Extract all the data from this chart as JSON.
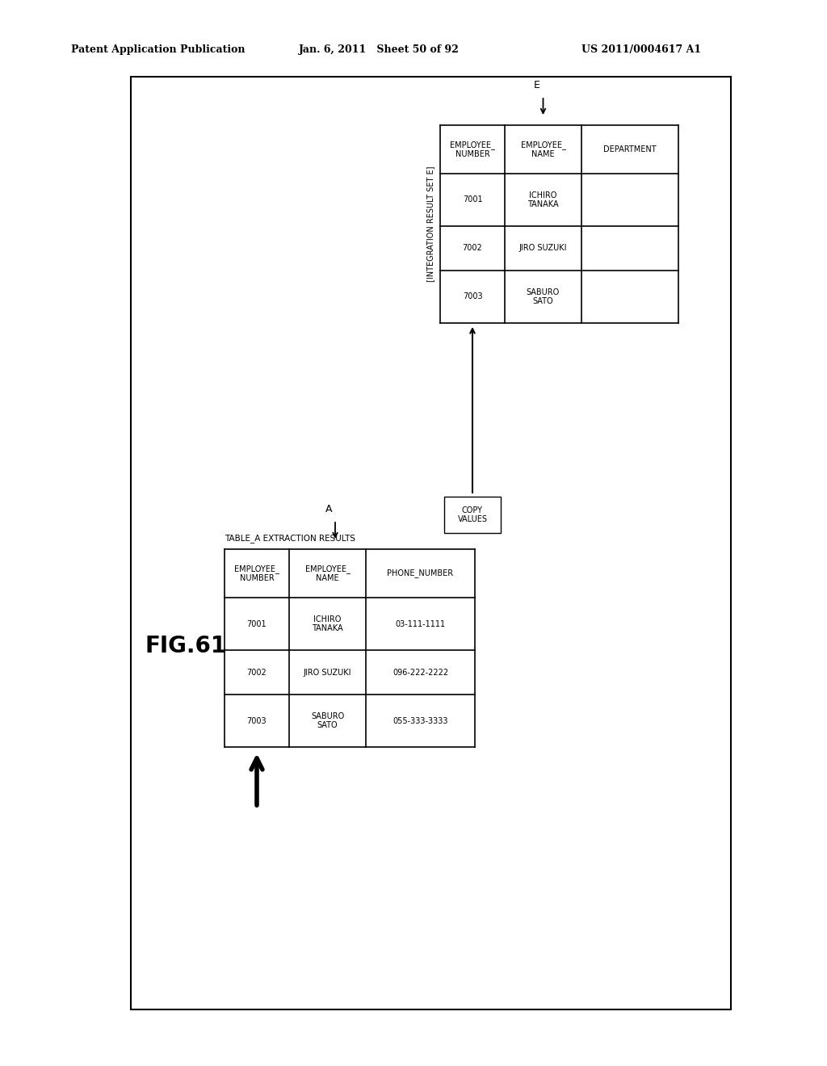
{
  "bg_color": "#ffffff",
  "header_left": "Patent Application Publication",
  "header_mid": "Jan. 6, 2011   Sheet 50 of 92",
  "header_right": "US 2011/0004617 A1",
  "fig_label": "FIG.61",
  "table_a_label": "TABLE_A EXTRACTION RESULTS",
  "table_a_cols": [
    "EMPLOYEE_\nNUMBER",
    "EMPLOYEE_\nNAME",
    "PHONE_NUMBER"
  ],
  "table_a_rows": [
    [
      "7001",
      "ICHIRO\nTANAKA",
      "03-111-1111"
    ],
    [
      "7002",
      "JIRO SUZUKI",
      "096-222-2222"
    ],
    [
      "7003",
      "SABURO\nSATO",
      "055-333-3333"
    ]
  ],
  "table_e_label": "[INTEGRATION RESULT SET E]",
  "table_e_cols": [
    "EMPLOYEE_\nNUMBER",
    "EMPLOYEE_\nNAME",
    "DEPARTMENT"
  ],
  "table_e_rows": [
    [
      "7001",
      "ICHIRO\nTANAKA",
      ""
    ],
    [
      "7002",
      "JIRO SUZUKI",
      ""
    ],
    [
      "7003",
      "SABURO\nSATO",
      ""
    ]
  ],
  "copy_values_label": "COPY\nVALUES",
  "a_label": "A",
  "e_label": "E"
}
